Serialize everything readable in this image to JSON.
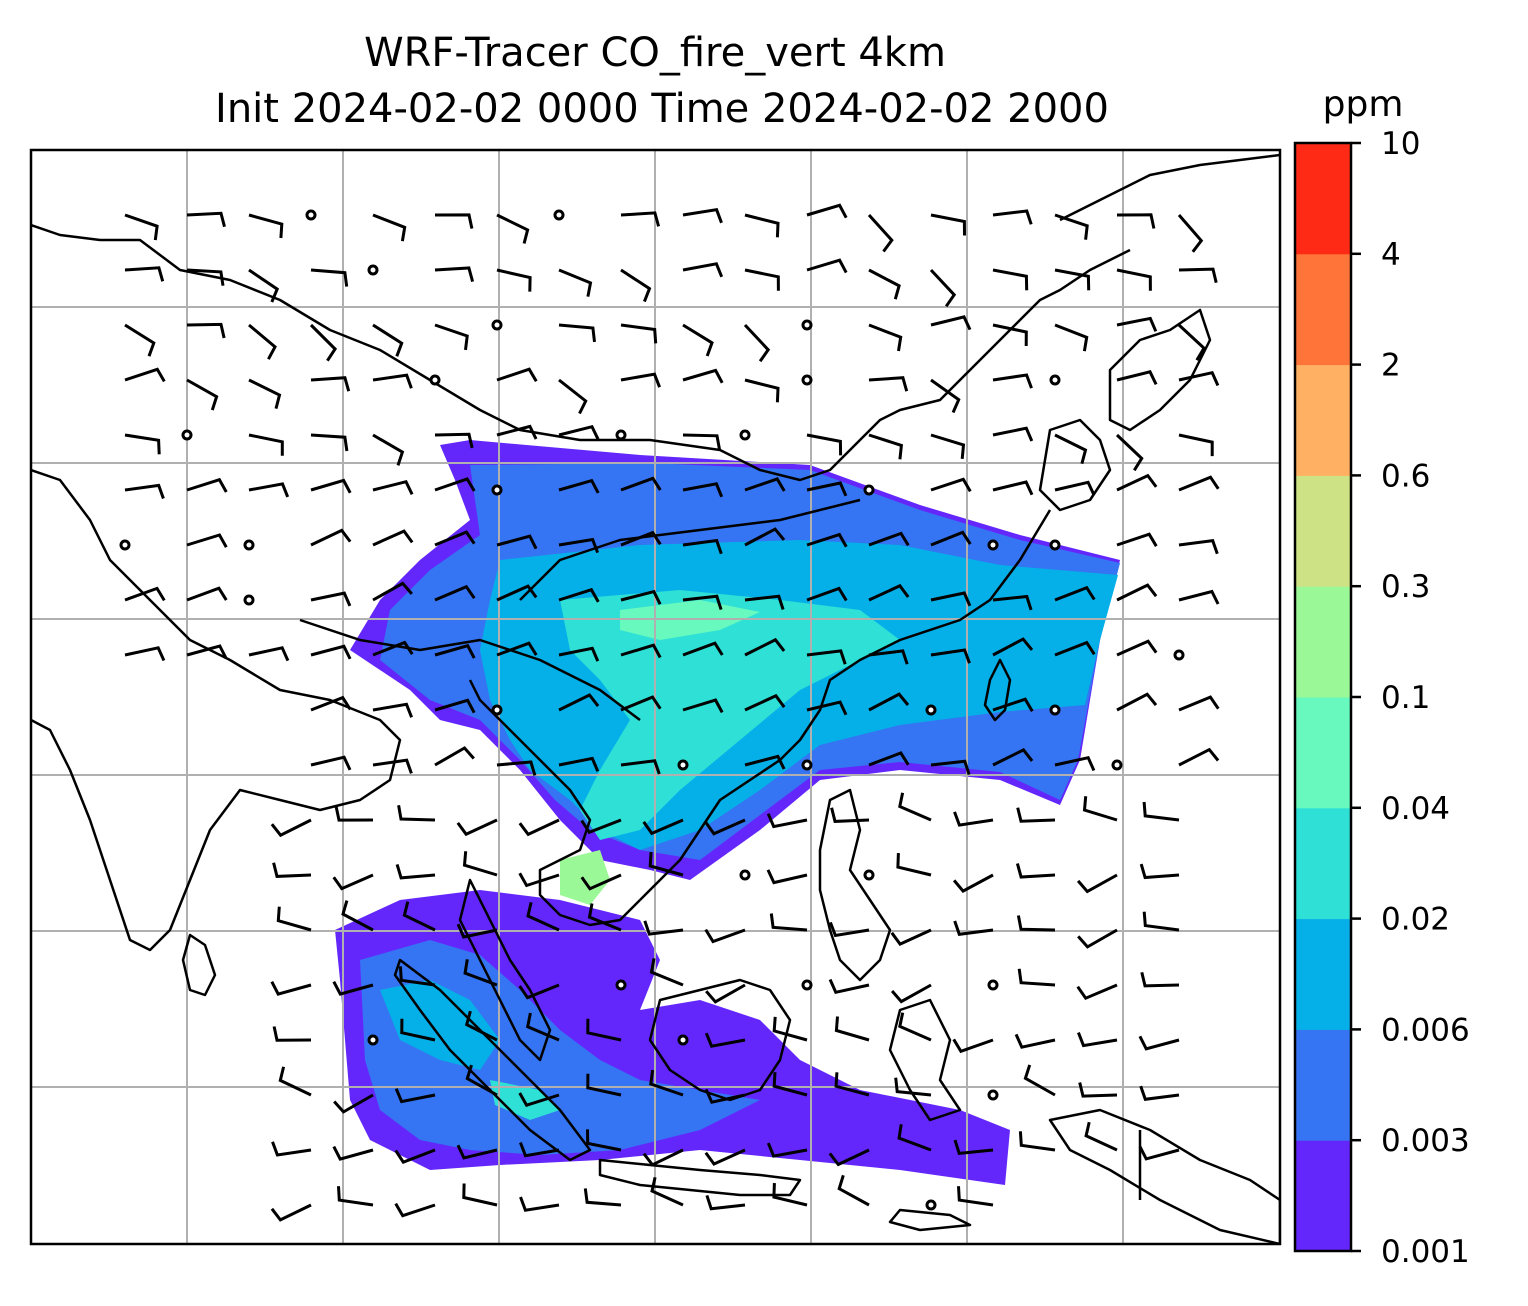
{
  "chart_data": {
    "type": "heatmap",
    "title_line1": "WRF-Tracer CO_fire_vert 4km",
    "title_line2": "Init 2024-02-02 0000 Time 2024-02-02 2000",
    "colorbar": {
      "unit": "ppm",
      "levels": [
        "0.001",
        "0.003",
        "0.006",
        "0.02",
        "0.04",
        "0.1",
        "0.3",
        "0.6",
        "2",
        "4",
        "10"
      ],
      "colors": [
        "#6427fb",
        "#3574f2",
        "#05b0e8",
        "#2ee0d5",
        "#67f9bd",
        "#9af896",
        "#cde284",
        "#ffb063",
        "#ff7539",
        "#ff2a16"
      ]
    },
    "overlays": {
      "gridlines": true,
      "coastlines": true,
      "wind_barbs": true
    }
  }
}
